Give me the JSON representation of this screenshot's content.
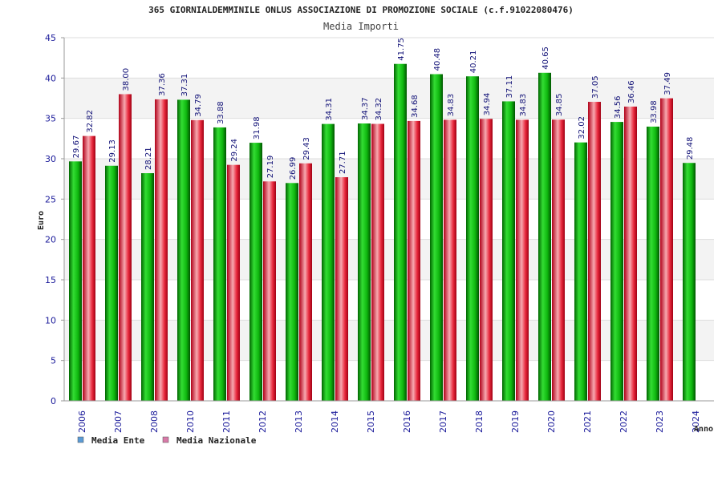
{
  "chart_data": {
    "type": "bar",
    "title": "365 GIORNIALDEMMINILE ONLUS ASSOCIAZIONE DI PROMOZIONE SOCIALE (c.f.91022080476)",
    "subtitle": "Media Importi",
    "xlabel": "Anno",
    "ylabel": "Euro",
    "ylim": [
      0,
      45
    ],
    "yticks": [
      0,
      5,
      10,
      15,
      20,
      25,
      30,
      35,
      40,
      45
    ],
    "grid": true,
    "legend_position": "bottom-left",
    "categories": [
      "2006",
      "2007",
      "2008",
      "2010",
      "2011",
      "2012",
      "2013",
      "2014",
      "2015",
      "2016",
      "2017",
      "2018",
      "2019",
      "2020",
      "2021",
      "2022",
      "2023",
      "2024"
    ],
    "series": [
      {
        "name": "Media Ente",
        "color": "#0fb80f",
        "legend_color": "#5b9bd5",
        "values": [
          29.67,
          29.13,
          28.21,
          37.31,
          33.88,
          31.98,
          26.99,
          34.31,
          34.37,
          41.75,
          40.48,
          40.21,
          37.11,
          40.65,
          32.02,
          34.56,
          33.98,
          29.48
        ],
        "labels": [
          "29.67",
          "29.13",
          "28.21",
          "37.31",
          "33.88",
          "31.98",
          "26.99",
          "34.31",
          "34.37",
          "41.75",
          "40.48",
          "40.21",
          "37.11",
          "40.65",
          "32.02",
          "34.56",
          "33.98",
          "29.48"
        ]
      },
      {
        "name": "Media Nazionale",
        "color": "#e8283c",
        "legend_color": "#d87aa8",
        "values": [
          32.82,
          38.0,
          37.36,
          34.79,
          29.24,
          27.19,
          29.43,
          27.71,
          34.32,
          34.68,
          34.83,
          34.94,
          34.83,
          34.85,
          37.05,
          36.46,
          37.49,
          null
        ],
        "labels": [
          "32.82",
          "38.00",
          "37.36",
          "34.79",
          "29.24",
          "27.19",
          "29.43",
          "27.71",
          "34.32",
          "34.68",
          "34.83",
          "34.94",
          "34.83",
          "34.85",
          "37.05",
          "36.46",
          "37.49",
          ""
        ]
      }
    ]
  }
}
